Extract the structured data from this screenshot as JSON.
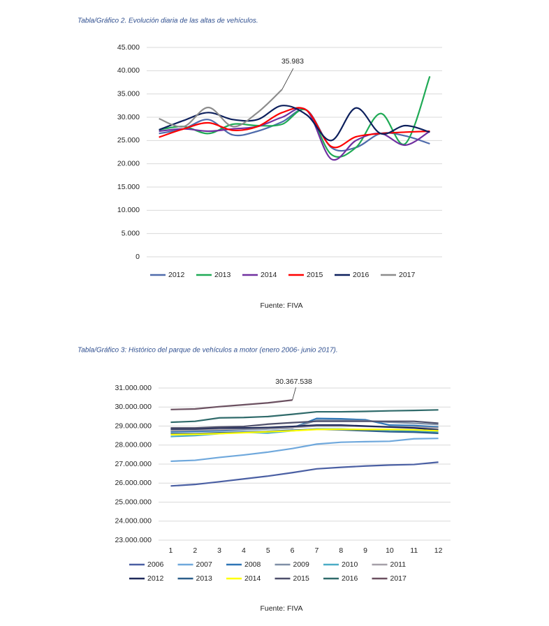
{
  "chart_data": [
    {
      "type": "line",
      "title": "Tabla/Gráfico 2. Evolución diaria de las altas de vehículos.",
      "source": "Fuente: FIVA",
      "annotation": "35.983",
      "smooth": true,
      "grid": true,
      "categories": [
        null,
        null,
        null,
        null,
        null,
        null,
        null,
        null,
        null,
        null,
        null,
        null
      ],
      "ylim": [
        0,
        45000
      ],
      "yticks": [
        {
          "value": 0,
          "label": "0"
        },
        {
          "value": 5000,
          "label": "5.000"
        },
        {
          "value": 10000,
          "label": "10.000"
        },
        {
          "value": 15000,
          "label": "15.000"
        },
        {
          "value": 20000,
          "label": "20.000"
        },
        {
          "value": 25000,
          "label": "25.000"
        },
        {
          "value": 30000,
          "label": "30.000"
        },
        {
          "value": 35000,
          "label": "35.000"
        },
        {
          "value": 40000,
          "label": "40.000"
        },
        {
          "value": 45000,
          "label": "45.000"
        }
      ],
      "series": [
        {
          "name": "2012",
          "color": "#4f6bab",
          "values": [
            26500,
            27500,
            29500,
            26200,
            27000,
            29000,
            31500,
            23500,
            23500,
            26500,
            26000,
            24300
          ]
        },
        {
          "name": "2013",
          "color": "#1faa55",
          "values": [
            27300,
            28000,
            26500,
            28500,
            28200,
            28500,
            31500,
            22000,
            23500,
            30800,
            24300,
            38800
          ]
        },
        {
          "name": "2014",
          "color": "#7030a0",
          "values": [
            27000,
            27500,
            27000,
            27500,
            28000,
            30000,
            31500,
            21000,
            25000,
            26500,
            24000,
            27000
          ]
        },
        {
          "name": "2015",
          "color": "#ff0000",
          "values": [
            25700,
            27500,
            28800,
            27200,
            28000,
            31000,
            31500,
            23700,
            25800,
            26500,
            26800,
            27000
          ]
        },
        {
          "name": "2016",
          "color": "#0c1f5c",
          "values": [
            27300,
            29300,
            31000,
            29500,
            29500,
            32500,
            30500,
            25000,
            32000,
            26500,
            28200,
            26800
          ]
        },
        {
          "name": "2017",
          "color": "#8c8c8c",
          "values": [
            29700,
            28000,
            32100,
            28000,
            31000,
            35983,
            null,
            null,
            null,
            null,
            null,
            null
          ]
        }
      ]
    },
    {
      "type": "line",
      "title": "Tabla/Gráfico 3: Histórico del parque de vehículos a motor (enero 2006- junio 2017).",
      "source": "Fuente: FIVA",
      "annotation": "30.367.538",
      "smooth": false,
      "grid": true,
      "categories": [
        1,
        2,
        3,
        4,
        5,
        6,
        7,
        8,
        9,
        10,
        11,
        12
      ],
      "ylim": [
        23000000,
        31000000
      ],
      "yticks": [
        {
          "value": 23000000,
          "label": "23.000.000"
        },
        {
          "value": 24000000,
          "label": "24.000.000"
        },
        {
          "value": 25000000,
          "label": "25.000.000"
        },
        {
          "value": 26000000,
          "label": "26.000.000"
        },
        {
          "value": 27000000,
          "label": "27.000.000"
        },
        {
          "value": 28000000,
          "label": "28.000.000"
        },
        {
          "value": 29000000,
          "label": "29.000.000"
        },
        {
          "value": 30000000,
          "label": "30.000.000"
        },
        {
          "value": 31000000,
          "label": "31.000.000"
        }
      ],
      "series": [
        {
          "name": "2006",
          "color": "#4a5fa3",
          "values": [
            25850000,
            25930000,
            26070000,
            26220000,
            26370000,
            26550000,
            26750000,
            26830000,
            26900000,
            26950000,
            26980000,
            27100000
          ]
        },
        {
          "name": "2007",
          "color": "#6fa8dc",
          "values": [
            27150000,
            27200000,
            27350000,
            27480000,
            27630000,
            27820000,
            28050000,
            28150000,
            28180000,
            28200000,
            28330000,
            28350000
          ]
        },
        {
          "name": "2008",
          "color": "#2e75b6",
          "values": [
            28700000,
            28720000,
            28750000,
            28800000,
            28850000,
            28900000,
            29400000,
            29380000,
            29330000,
            29050000,
            29030000,
            28950000
          ]
        },
        {
          "name": "2009",
          "color": "#7f8fa6",
          "values": [
            28750000,
            28780000,
            28800000,
            28820000,
            28850000,
            28900000,
            29300000,
            29300000,
            29280000,
            29200000,
            29150000,
            29080000
          ]
        },
        {
          "name": "2010",
          "color": "#4bacc6",
          "values": [
            28450000,
            28500000,
            28600000,
            28680000,
            28630000,
            28750000,
            28850000,
            28850000,
            28800000,
            28780000,
            28750000,
            28700000
          ]
        },
        {
          "name": "2011",
          "color": "#a5a0a8",
          "values": [
            28780000,
            28800000,
            28820000,
            28850000,
            28880000,
            28920000,
            29000000,
            29000000,
            28980000,
            28950000,
            28950000,
            28900000
          ]
        },
        {
          "name": "2012",
          "color": "#1f2a5a",
          "values": [
            28850000,
            28850000,
            28900000,
            28900000,
            28920000,
            28980000,
            29050000,
            29050000,
            29000000,
            28950000,
            28900000,
            28800000
          ]
        },
        {
          "name": "2013",
          "color": "#2c5f8a",
          "values": [
            28600000,
            28600000,
            28650000,
            28680000,
            28720000,
            28780000,
            28830000,
            28800000,
            28750000,
            28700000,
            28680000,
            28620000
          ]
        },
        {
          "name": "2014",
          "color": "#ffff00",
          "values": [
            28550000,
            28570000,
            28600000,
            28650000,
            28700000,
            28750000,
            28820000,
            28830000,
            28820000,
            28820000,
            28800000,
            28750000
          ]
        },
        {
          "name": "2015",
          "color": "#4e4f6b",
          "values": [
            28900000,
            28900000,
            28950000,
            28980000,
            29100000,
            29180000,
            29250000,
            29250000,
            29250000,
            29250000,
            29250000,
            29150000
          ]
        },
        {
          "name": "2016",
          "color": "#2f6a6a",
          "values": [
            29200000,
            29250000,
            29430000,
            29450000,
            29500000,
            29620000,
            29750000,
            29750000,
            29770000,
            29800000,
            29820000,
            29850000
          ]
        },
        {
          "name": "2017",
          "color": "#6b5060",
          "values": [
            29870000,
            29900000,
            30020000,
            30120000,
            30220000,
            30367538,
            null,
            null,
            null,
            null,
            null,
            null
          ]
        }
      ]
    }
  ]
}
